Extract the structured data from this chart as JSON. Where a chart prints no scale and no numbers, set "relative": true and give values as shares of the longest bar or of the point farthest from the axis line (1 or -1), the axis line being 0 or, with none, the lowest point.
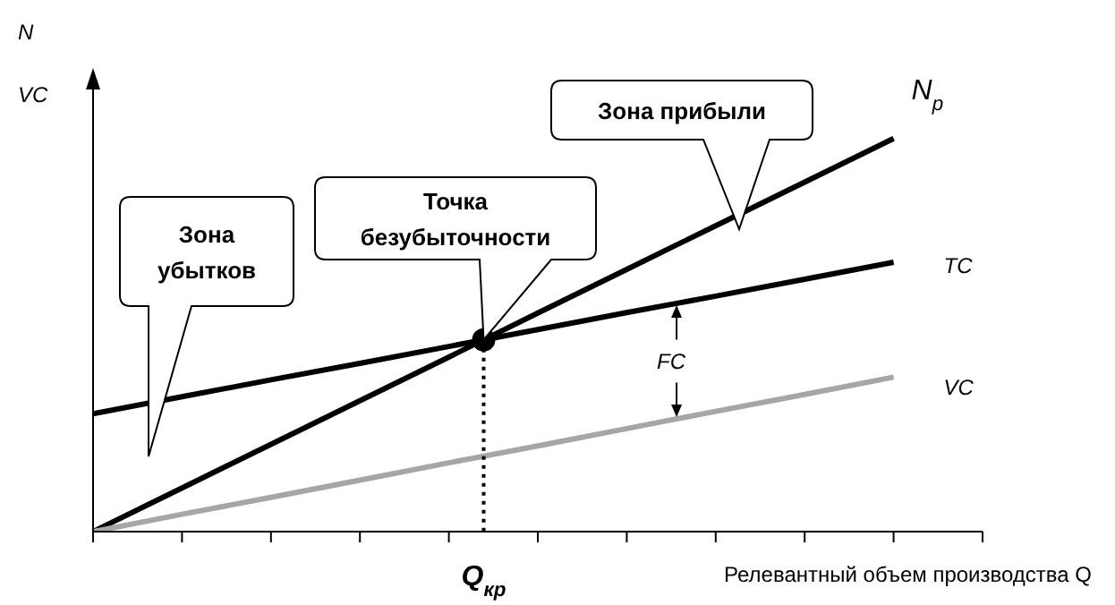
{
  "chart_data": {
    "type": "line",
    "relative": true,
    "xlabel": "Релевантный объем производства Q",
    "marker": "none",
    "line_style": "solid",
    "categories": [
      null,
      null,
      null,
      null,
      null,
      null,
      null,
      null,
      null,
      null,
      null
    ],
    "series": [
      {
        "name": "N$_{р}$",
        "color": "#000000",
        "values": [
          0,
          0.111,
          0.222,
          0.333,
          0.444,
          0.556,
          0.667,
          0.778,
          0.889,
          1,
          null
        ]
      },
      {
        "name": "TC",
        "color": "#000000",
        "values": [
          0.3,
          0.343,
          0.386,
          0.428,
          0.471,
          0.514,
          0.557,
          0.599,
          0.642,
          0.685,
          null
        ]
      },
      {
        "name": "VC",
        "color": "#a6a6a6",
        "values": [
          0,
          0.044,
          0.087,
          0.131,
          0.175,
          0.218,
          0.262,
          0.306,
          0.349,
          0.393,
          null
        ]
      }
    ],
    "annotations": [
      "Зона прибыли",
      "Точка безубыточности",
      "Зона убытков",
      "FC",
      "Q$_{кр}$",
      "N",
      "VC"
    ]
  }
}
